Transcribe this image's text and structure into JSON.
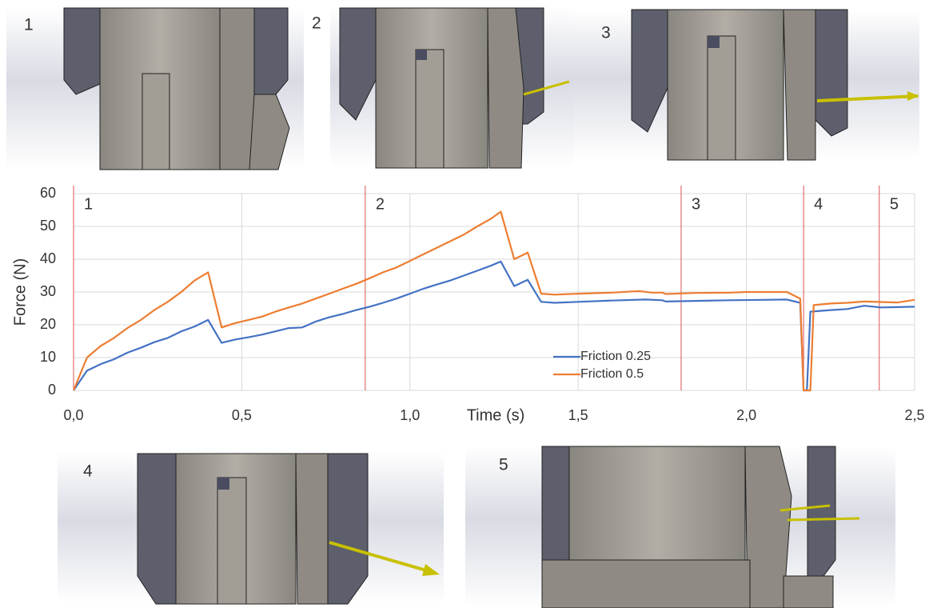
{
  "panels": [
    {
      "label": "1"
    },
    {
      "label": "2"
    },
    {
      "label": "3"
    },
    {
      "label": "4"
    },
    {
      "label": "5"
    }
  ],
  "chart_data": {
    "type": "line",
    "x_label": "Time (s)",
    "y_label": "Force (N)",
    "xlim": [
      0,
      2.5
    ],
    "ylim": [
      0,
      60
    ],
    "xticks": [
      {
        "value": 0,
        "label": "0,0"
      },
      {
        "value": 0.5,
        "label": "0,5"
      },
      {
        "value": 1,
        "label": "1,0"
      },
      {
        "value": 1.5,
        "label": "1,5"
      },
      {
        "value": 2,
        "label": "2,0"
      },
      {
        "value": 2.5,
        "label": "2,5"
      }
    ],
    "yticks": [
      0,
      10,
      20,
      30,
      40,
      50,
      60
    ],
    "grid": true,
    "phases": [
      {
        "x": 0,
        "label": "1"
      },
      {
        "x": 0.867,
        "label": "2"
      },
      {
        "x": 1.806,
        "label": "3"
      },
      {
        "x": 2.17,
        "label": "4"
      },
      {
        "x": 2.395,
        "label": "5"
      }
    ],
    "phase_color": "#e05050",
    "series": [
      {
        "name": "Friction 0.25",
        "color": "#4472c4",
        "x": [
          0,
          0.04,
          0.08,
          0.12,
          0.16,
          0.2,
          0.24,
          0.28,
          0.32,
          0.36,
          0.4,
          0.44,
          0.48,
          0.52,
          0.56,
          0.6,
          0.64,
          0.68,
          0.72,
          0.76,
          0.8,
          0.84,
          0.88,
          0.92,
          0.96,
          1.0,
          1.04,
          1.08,
          1.12,
          1.16,
          1.2,
          1.24,
          1.27,
          1.31,
          1.35,
          1.39,
          1.43,
          1.5,
          1.6,
          1.7,
          1.75,
          1.76,
          1.85,
          1.95,
          2.05,
          2.12,
          2.16,
          2.17,
          2.18,
          2.19,
          2.25,
          2.3,
          2.35,
          2.4,
          2.45,
          2.5
        ],
        "values": [
          0,
          6,
          8,
          9.5,
          11.5,
          13,
          14.7,
          16,
          18,
          19.5,
          21.5,
          14.5,
          15.5,
          16.2,
          17,
          18,
          19,
          19.2,
          21,
          22.3,
          23.3,
          24.5,
          25.5,
          26.7,
          28,
          29.5,
          31,
          32.3,
          33.5,
          35,
          36.5,
          38,
          39.3,
          31.8,
          33.7,
          27,
          26.7,
          27,
          27.4,
          27.7,
          27.5,
          27.1,
          27.3,
          27.5,
          27.6,
          27.7,
          26.7,
          0,
          0,
          24,
          24.5,
          24.8,
          25.8,
          25.3,
          25.4,
          25.5
        ]
      },
      {
        "name": "Friction 0.5",
        "color": "#ed7d31",
        "x": [
          0,
          0.04,
          0.08,
          0.12,
          0.16,
          0.2,
          0.24,
          0.28,
          0.32,
          0.36,
          0.4,
          0.44,
          0.48,
          0.52,
          0.56,
          0.6,
          0.64,
          0.68,
          0.72,
          0.76,
          0.8,
          0.84,
          0.88,
          0.92,
          0.96,
          1.0,
          1.04,
          1.08,
          1.12,
          1.16,
          1.2,
          1.24,
          1.27,
          1.31,
          1.35,
          1.39,
          1.43,
          1.5,
          1.6,
          1.68,
          1.72,
          1.75,
          1.76,
          1.85,
          1.95,
          2.0,
          2.12,
          2.16,
          2.17,
          2.19,
          2.2,
          2.25,
          2.3,
          2.35,
          2.45,
          2.5
        ],
        "values": [
          0,
          10,
          13.5,
          16,
          19,
          21.5,
          24.5,
          27,
          30,
          33.5,
          36,
          19.2,
          20.5,
          21.5,
          22.5,
          24,
          25.3,
          26.5,
          28,
          29.5,
          31,
          32.5,
          34.2,
          36,
          37.5,
          39.5,
          41.5,
          43.5,
          45.5,
          47.5,
          50,
          52.3,
          54.5,
          40,
          42,
          29.5,
          29.2,
          29.5,
          29.8,
          30.3,
          29.8,
          29.8,
          29.4,
          29.7,
          29.8,
          30,
          30,
          28,
          0,
          0,
          26,
          26.5,
          26.7,
          27.1,
          26.8,
          27.6
        ]
      }
    ]
  }
}
